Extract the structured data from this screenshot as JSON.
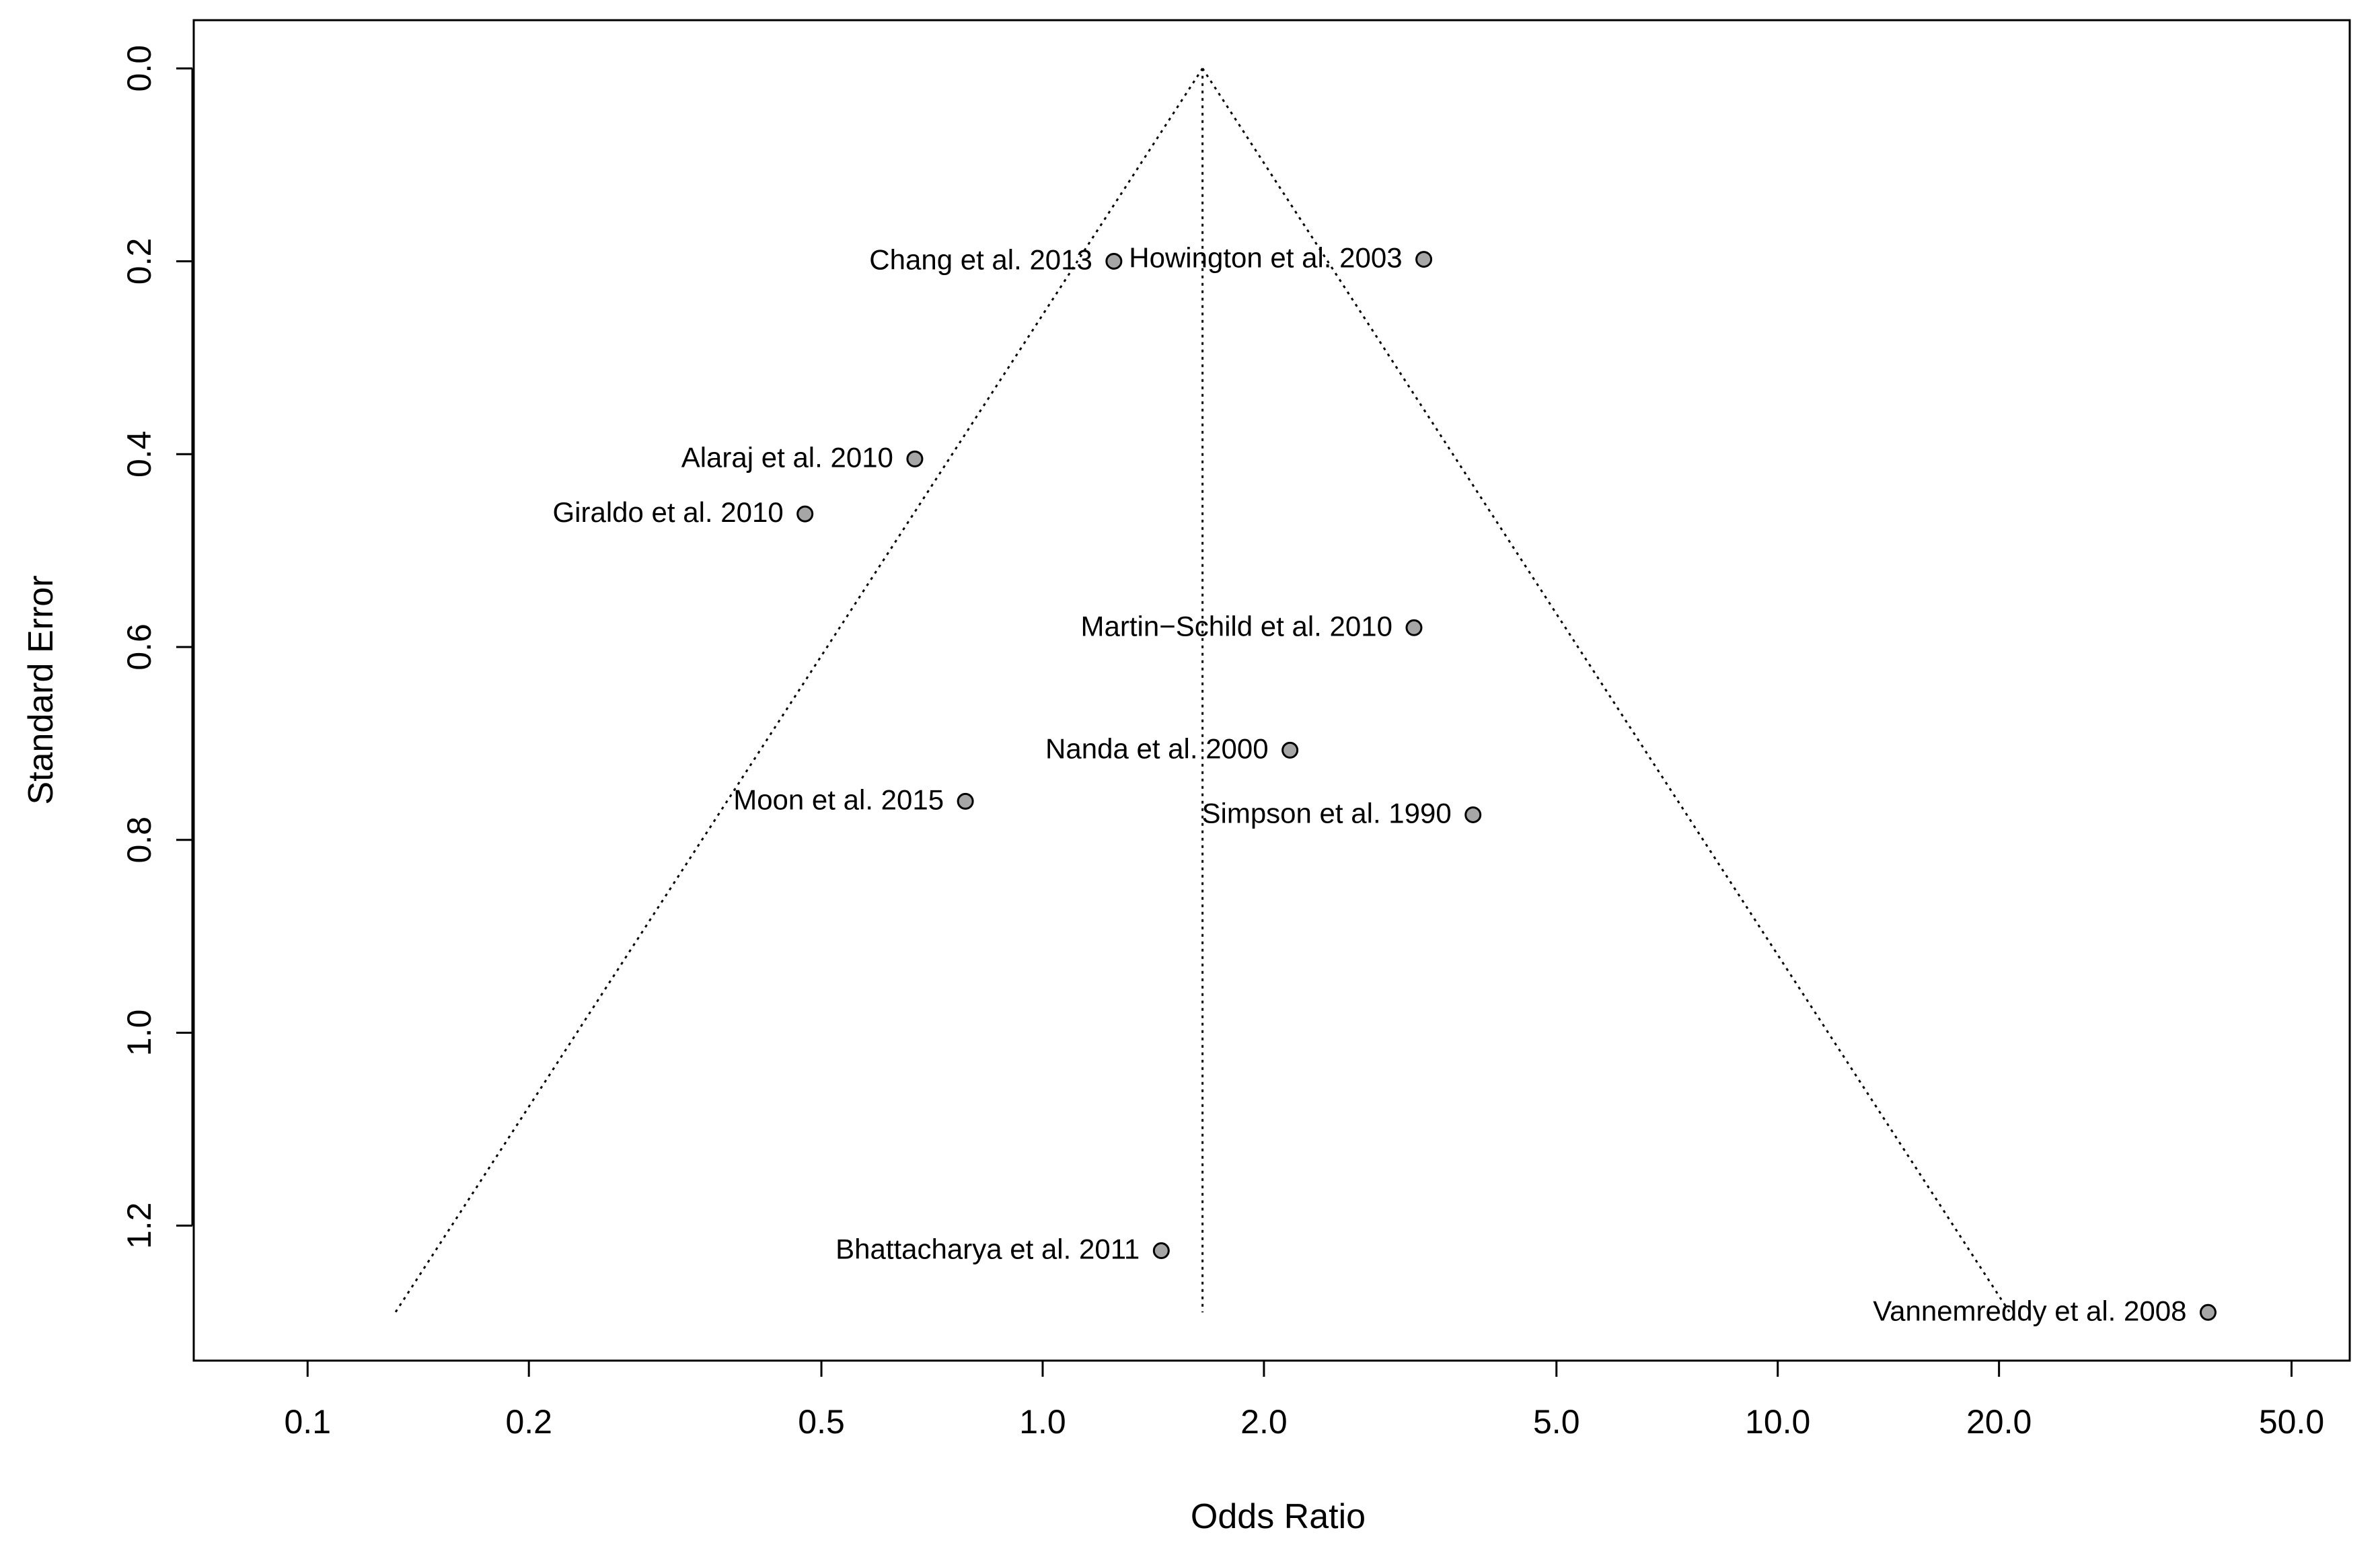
{
  "chart_data": {
    "type": "scatter",
    "title": "",
    "xlabel": "Odds Ratio",
    "ylabel": "Standard Error",
    "x_scale": "log",
    "x_ticks": [
      0.1,
      0.2,
      0.5,
      1.0,
      2.0,
      5.0,
      10.0,
      20.0,
      50.0
    ],
    "x_tick_labels": [
      "0.1",
      "0.2",
      "0.5",
      "1.0",
      "2.0",
      "5.0",
      "10.0",
      "20.0",
      "50.0"
    ],
    "y_ticks": [
      0.0,
      0.2,
      0.4,
      0.6,
      0.8,
      1.0,
      1.2
    ],
    "y_tick_labels": [
      "0.0",
      "0.2",
      "0.4",
      "0.6",
      "0.8",
      "1.0",
      "1.2"
    ],
    "xlim": [
      0.07,
      60
    ],
    "ylim": [
      1.34,
      -0.05
    ],
    "y_reversed": true,
    "grid": false,
    "pooled_estimate": 1.65,
    "funnel_se_max": 1.29,
    "points": [
      {
        "label": "Chang et al. 2013",
        "x": 1.25,
        "y": 0.2
      },
      {
        "label": "Howington et al. 2003",
        "x": 3.3,
        "y": 0.198
      },
      {
        "label": "Alaraj et al. 2010",
        "x": 0.67,
        "y": 0.405
      },
      {
        "label": "Giraldo et al. 2010",
        "x": 0.475,
        "y": 0.462
      },
      {
        "label": "Martin−Schild et al. 2010",
        "x": 3.2,
        "y": 0.58
      },
      {
        "label": "Nanda et al. 2000",
        "x": 2.17,
        "y": 0.707
      },
      {
        "label": "Moon et al. 2015",
        "x": 0.785,
        "y": 0.76
      },
      {
        "label": "Simpson et al. 1990",
        "x": 3.85,
        "y": 0.774
      },
      {
        "label": "Bhattacharya et al. 2011",
        "x": 1.45,
        "y": 1.226
      },
      {
        "label": "Vannemreddy et al. 2008",
        "x": 38.5,
        "y": 1.29
      }
    ],
    "colors": {
      "point_fill": "#a6a6a6",
      "stroke": "#000000"
    }
  }
}
